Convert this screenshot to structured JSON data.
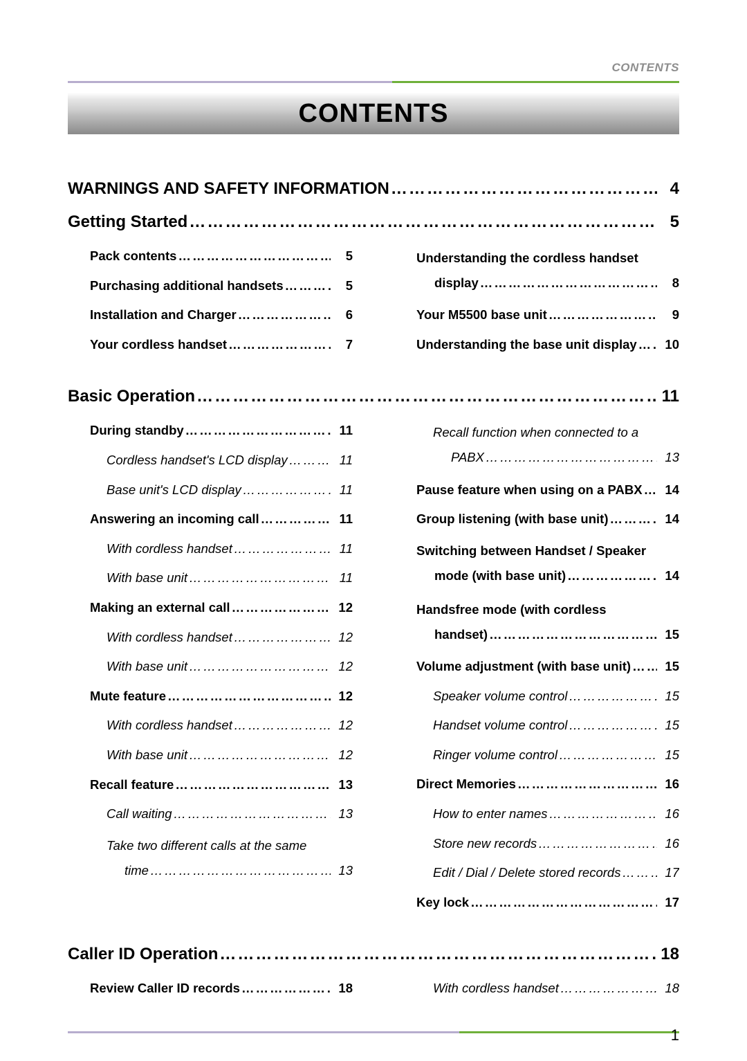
{
  "page": {
    "running_head": "CONTENTS",
    "title": "CONTENTS",
    "page_number": "1",
    "colors": {
      "rule_left": "#b7adce",
      "rule_right": "#6fb03a",
      "running_head_text": "#8e8e8e",
      "text": "#000000",
      "background": "#ffffff"
    }
  },
  "sections": [
    {
      "id": "warnings",
      "label": "WARNINGS AND SAFETY INFORMATION",
      "page": "4",
      "columns": []
    },
    {
      "id": "getting_started",
      "label": "Getting Started",
      "page": "5",
      "columns": [
        [
          {
            "style": "bold",
            "indent": 1,
            "label": "Pack contents",
            "page": "5"
          },
          {
            "style": "bold",
            "indent": 1,
            "label": "Purchasing additional handsets",
            "page": "5"
          },
          {
            "style": "bold",
            "indent": 1,
            "label": "Installation and Charger",
            "page": "6"
          },
          {
            "style": "bold",
            "indent": 1,
            "label": "Your cordless handset",
            "page": "7"
          }
        ],
        [
          {
            "style": "bold",
            "indent": 1,
            "wrap": true,
            "line1": "Understanding the cordless handset",
            "label_cont": "display",
            "page": "8"
          },
          {
            "style": "bold",
            "indent": 1,
            "label": "Your M5500 base unit",
            "page": "9"
          },
          {
            "style": "bold",
            "indent": 1,
            "label": "Understanding the base unit display",
            "page": "10"
          }
        ]
      ]
    },
    {
      "id": "basic_op",
      "label": "Basic Operation",
      "page": "11",
      "columns": [
        [
          {
            "style": "bold",
            "indent": 1,
            "label": "During standby",
            "page": "11"
          },
          {
            "style": "italic",
            "indent": 2,
            "label": "Cordless handset's LCD display",
            "page": "11"
          },
          {
            "style": "italic",
            "indent": 2,
            "label": "Base unit's LCD display",
            "page": "11"
          },
          {
            "style": "bold",
            "indent": 1,
            "label": "Answering an incoming call",
            "page": "11"
          },
          {
            "style": "italic",
            "indent": 2,
            "label": "With cordless handset",
            "page": "11"
          },
          {
            "style": "italic",
            "indent": 2,
            "label": "With base unit",
            "page": "11"
          },
          {
            "style": "bold",
            "indent": 1,
            "label": "Making an external call",
            "page": "12"
          },
          {
            "style": "italic",
            "indent": 2,
            "label": "With cordless handset",
            "page": "12"
          },
          {
            "style": "italic",
            "indent": 2,
            "label": "With base unit",
            "page": "12"
          },
          {
            "style": "bold",
            "indent": 1,
            "label": "Mute feature",
            "page": "12"
          },
          {
            "style": "italic",
            "indent": 2,
            "label": "With cordless handset",
            "page": "12"
          },
          {
            "style": "italic",
            "indent": 2,
            "label": "With base unit",
            "page": "12"
          },
          {
            "style": "bold",
            "indent": 1,
            "label": "Recall feature",
            "page": "13"
          },
          {
            "style": "italic",
            "indent": 2,
            "label": "Call waiting",
            "page": "13"
          },
          {
            "style": "italic",
            "indent": 2,
            "wrap": true,
            "line1": "Take two different calls at the same",
            "label_cont": "time",
            "page": "13"
          }
        ],
        [
          {
            "style": "italic",
            "indent": 2,
            "wrap": true,
            "line1": "Recall function when connected to a",
            "label_cont": "PABX",
            "page": "13"
          },
          {
            "style": "bold",
            "indent": 1,
            "label": "Pause feature when using on a PABX",
            "page": "14"
          },
          {
            "style": "bold",
            "indent": 1,
            "label": "Group listening (with base unit)",
            "page": "14"
          },
          {
            "style": "bold",
            "indent": 1,
            "wrap": true,
            "line1": "Switching between Handset / Speaker",
            "label_cont": "mode (with base unit)",
            "page": "14"
          },
          {
            "style": "bold",
            "indent": 1,
            "wrap": true,
            "line1": "Handsfree mode (with cordless",
            "label_cont": "handset)",
            "page": "15"
          },
          {
            "style": "bold",
            "indent": 1,
            "label": "Volume adjustment (with base unit)",
            "page": "15"
          },
          {
            "style": "italic",
            "indent": 2,
            "label": "Speaker volume control",
            "page": "15"
          },
          {
            "style": "italic",
            "indent": 2,
            "label": "Handset volume control",
            "page": "15"
          },
          {
            "style": "italic",
            "indent": 2,
            "label": "Ringer volume control",
            "page": "15"
          },
          {
            "style": "bold",
            "indent": 1,
            "label": "Direct Memories",
            "page": "16"
          },
          {
            "style": "italic",
            "indent": 2,
            "label": "How to enter names",
            "page": "16"
          },
          {
            "style": "italic",
            "indent": 2,
            "label": "Store new records",
            "page": "16"
          },
          {
            "style": "italic",
            "indent": 2,
            "label": "Edit / Dial / Delete stored records",
            "page": "17"
          },
          {
            "style": "bold",
            "indent": 1,
            "label": "Key lock",
            "page": "17"
          }
        ]
      ]
    },
    {
      "id": "caller_id",
      "label": "Caller ID Operation",
      "page": "18",
      "columns": [
        [
          {
            "style": "bold",
            "indent": 1,
            "label": "Review Caller ID records",
            "page": "18"
          }
        ],
        [
          {
            "style": "italic",
            "indent": 2,
            "label": "With cordless handset",
            "page": "18"
          }
        ]
      ]
    }
  ]
}
